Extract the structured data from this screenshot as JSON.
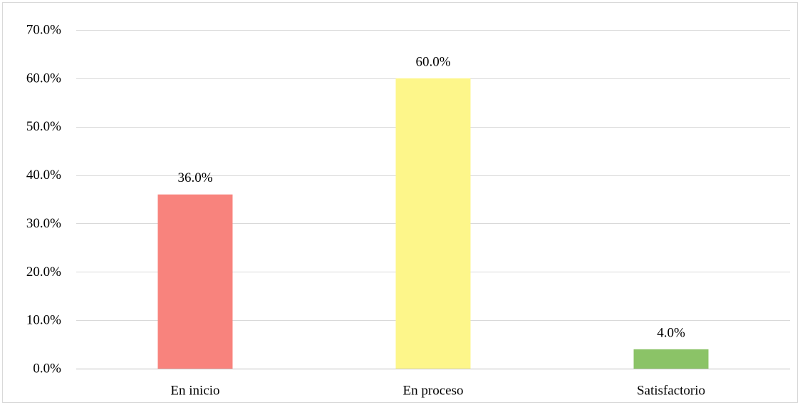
{
  "chart_data": {
    "type": "bar",
    "categories": [
      "En inicio",
      "En proceso",
      "Satisfactorio"
    ],
    "values": [
      36.0,
      60.0,
      4.0
    ],
    "value_labels": [
      "36.0%",
      "60.0%",
      "4.0%"
    ],
    "bar_colors": [
      "#f8837d",
      "#fdf68a",
      "#8bc367"
    ],
    "ylim": [
      0,
      70
    ],
    "yticks": [
      0,
      10,
      20,
      30,
      40,
      50,
      60,
      70
    ],
    "ytick_labels": [
      "0.0%",
      "10.0%",
      "20.0%",
      "30.0%",
      "40.0%",
      "50.0%",
      "60.0%",
      "70.0%"
    ],
    "grid": true,
    "legend": "none",
    "title": "",
    "xlabel": "",
    "ylabel": ""
  },
  "colors": {
    "gridline": "#d9d9d9",
    "axis": "#bfbfbf",
    "text": "#000000"
  }
}
